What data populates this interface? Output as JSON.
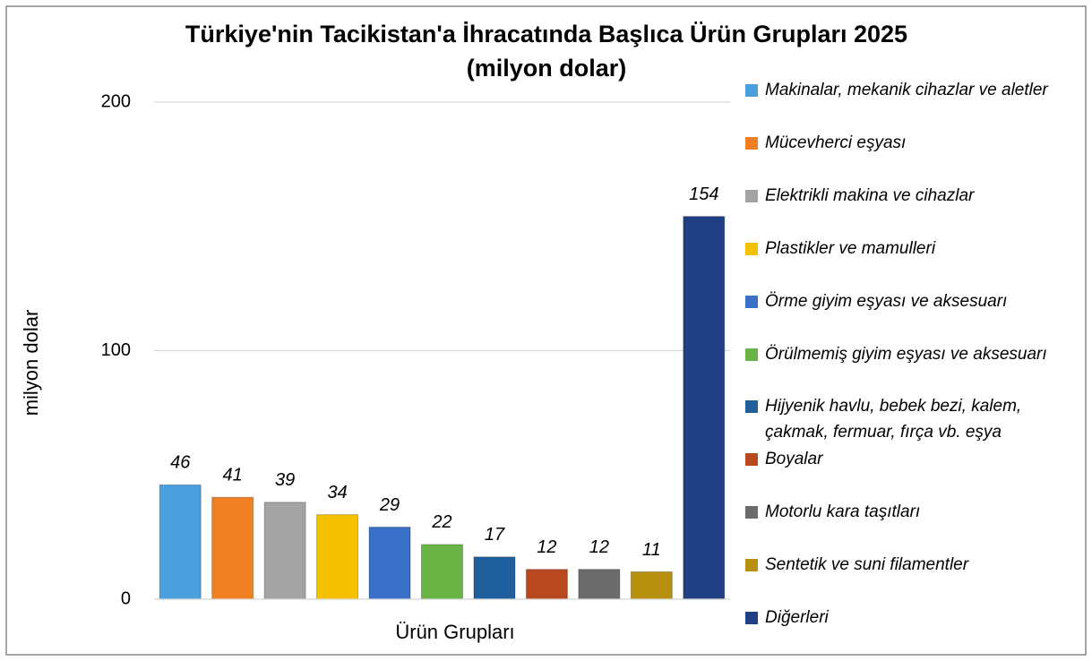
{
  "chart_data": {
    "type": "bar",
    "title": "Türkiye'nin Tacikistan'a İhracatında Başlıca Ürün Grupları 2025",
    "subtitle": "(milyon dolar)",
    "x_label": "Ürün Grupları",
    "y_label": "milyon dolar",
    "ylim": [
      0,
      200
    ],
    "yticks": [
      0,
      100,
      200
    ],
    "grid": true,
    "legend": "right",
    "series": [
      {
        "name": "Makinalar, mekanik cihazlar ve aletler",
        "color": "#4a9fdc",
        "values": [
          46
        ]
      },
      {
        "name": "Mücevherci eşyası",
        "color": "#f07f21",
        "values": [
          41
        ]
      },
      {
        "name": "Elektrikli makina ve cihazlar",
        "color": "#a3a3a3",
        "values": [
          39
        ]
      },
      {
        "name": "Plastikler ve mamulleri",
        "color": "#f5c000",
        "values": [
          34
        ]
      },
      {
        "name": "Örme giyim eşyası ve aksesuarı",
        "color": "#3a6fc8",
        "values": [
          29
        ]
      },
      {
        "name": "Örülmemiş giyim eşyası ve aksesuarı",
        "color": "#6ab446",
        "values": [
          22
        ]
      },
      {
        "name": "Hijyenik havlu, bebek bezi, kalem, çakmak, fermuar, fırça vb. eşya",
        "color": "#1f5f9e",
        "values": [
          17
        ]
      },
      {
        "name": "Boyalar",
        "color": "#b8481d",
        "values": [
          12
        ]
      },
      {
        "name": "Motorlu kara taşıtları",
        "color": "#6b6b6b",
        "values": [
          12
        ]
      },
      {
        "name": "Sentetik ve suni filamentler",
        "color": "#b8900f",
        "values": [
          11
        ]
      },
      {
        "name": "Diğerleri",
        "color": "#213f85",
        "values": [
          154
        ]
      }
    ]
  }
}
